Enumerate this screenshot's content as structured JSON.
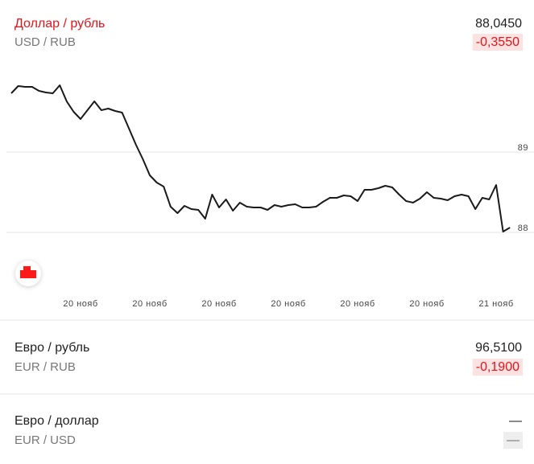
{
  "items": [
    {
      "title": "Доллар / рубль",
      "pair": "USD / RUB",
      "value": "88,0450",
      "change": "-0,3550"
    },
    {
      "title": "Евро / рубль",
      "pair": "EUR / RUB",
      "value": "96,5100",
      "change": "-0,1900"
    },
    {
      "title": "Евро / доллар",
      "pair": "EUR / USD",
      "value": "—",
      "change": "—"
    }
  ],
  "chart_data": {
    "type": "line",
    "color": "#1a1a1a",
    "categories": [
      null,
      null,
      null,
      null,
      null,
      null,
      null,
      null,
      null,
      null,
      "20 нояб",
      null,
      null,
      null,
      null,
      null,
      null,
      null,
      null,
      null,
      "20 нояб",
      null,
      null,
      null,
      null,
      null,
      null,
      null,
      null,
      null,
      "20 нояб",
      null,
      null,
      null,
      null,
      null,
      null,
      null,
      null,
      null,
      "20 нояб",
      null,
      null,
      null,
      null,
      null,
      null,
      null,
      null,
      null,
      "20 нояб",
      null,
      null,
      null,
      null,
      null,
      null,
      null,
      null,
      null,
      "20 нояб",
      null,
      null,
      null,
      null,
      null,
      null,
      null,
      null,
      null,
      "21 нояб",
      null,
      null
    ],
    "values": [
      89.73,
      89.82,
      89.81,
      89.81,
      89.76,
      89.74,
      89.73,
      89.83,
      89.63,
      89.5,
      89.41,
      89.52,
      89.63,
      89.52,
      89.54,
      89.51,
      89.49,
      89.29,
      89.09,
      88.91,
      88.71,
      88.62,
      88.57,
      88.32,
      88.24,
      88.33,
      88.29,
      88.28,
      88.17,
      88.47,
      88.31,
      88.41,
      88.27,
      88.37,
      88.32,
      88.31,
      88.31,
      88.28,
      88.34,
      88.32,
      88.34,
      88.35,
      88.31,
      88.31,
      88.32,
      88.38,
      88.43,
      88.43,
      88.46,
      88.45,
      88.39,
      88.53,
      88.53,
      88.55,
      88.58,
      88.56,
      88.47,
      88.39,
      88.37,
      88.42,
      88.5,
      88.43,
      88.42,
      88.4,
      88.45,
      88.47,
      88.45,
      88.29,
      88.43,
      88.41,
      88.59,
      88.01,
      88.06
    ],
    "ylim": [
      87.5,
      90
    ],
    "yticks": [
      88,
      89
    ],
    "grid": true
  }
}
